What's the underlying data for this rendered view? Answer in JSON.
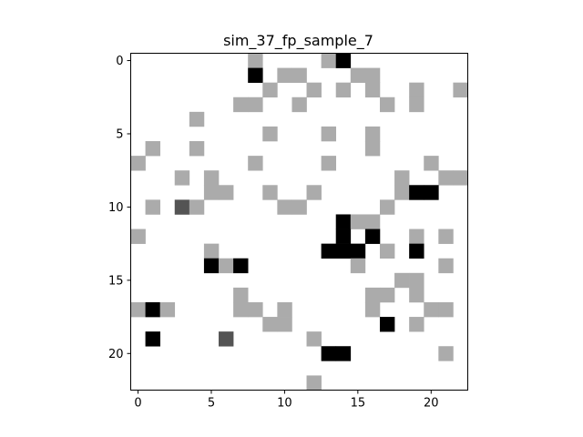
{
  "chart_data": {
    "type": "heatmap",
    "title": "sim_37_fp_sample_7",
    "xlabel": "",
    "ylabel": "",
    "rows": 23,
    "cols": 23,
    "xlim": [
      -0.5,
      22.5
    ],
    "ylim": [
      22.5,
      -0.5
    ],
    "x_ticks": [
      0,
      5,
      10,
      15,
      20
    ],
    "y_ticks": [
      0,
      5,
      10,
      15,
      20
    ],
    "grid": false,
    "colormap": "gray_r",
    "value_range": [
      0,
      1
    ],
    "cells": [
      {
        "r": 0,
        "c": 8,
        "v": 0.33
      },
      {
        "r": 0,
        "c": 13,
        "v": 0.33
      },
      {
        "r": 0,
        "c": 14,
        "v": 1
      },
      {
        "r": 1,
        "c": 8,
        "v": 1
      },
      {
        "r": 1,
        "c": 10,
        "v": 0.33
      },
      {
        "r": 1,
        "c": 11,
        "v": 0.33
      },
      {
        "r": 1,
        "c": 15,
        "v": 0.33
      },
      {
        "r": 1,
        "c": 16,
        "v": 0.33
      },
      {
        "r": 2,
        "c": 9,
        "v": 0.33
      },
      {
        "r": 2,
        "c": 12,
        "v": 0.33
      },
      {
        "r": 2,
        "c": 14,
        "v": 0.33
      },
      {
        "r": 2,
        "c": 16,
        "v": 0.33
      },
      {
        "r": 2,
        "c": 19,
        "v": 0.33
      },
      {
        "r": 2,
        "c": 22,
        "v": 0.33
      },
      {
        "r": 3,
        "c": 7,
        "v": 0.33
      },
      {
        "r": 3,
        "c": 8,
        "v": 0.33
      },
      {
        "r": 3,
        "c": 11,
        "v": 0.33
      },
      {
        "r": 3,
        "c": 17,
        "v": 0.33
      },
      {
        "r": 3,
        "c": 19,
        "v": 0.33
      },
      {
        "r": 4,
        "c": 4,
        "v": 0.33
      },
      {
        "r": 5,
        "c": 9,
        "v": 0.33
      },
      {
        "r": 5,
        "c": 13,
        "v": 0.33
      },
      {
        "r": 5,
        "c": 16,
        "v": 0.33
      },
      {
        "r": 6,
        "c": 1,
        "v": 0.33
      },
      {
        "r": 6,
        "c": 4,
        "v": 0.33
      },
      {
        "r": 6,
        "c": 16,
        "v": 0.33
      },
      {
        "r": 7,
        "c": 0,
        "v": 0.33
      },
      {
        "r": 7,
        "c": 8,
        "v": 0.33
      },
      {
        "r": 7,
        "c": 13,
        "v": 0.33
      },
      {
        "r": 7,
        "c": 20,
        "v": 0.33
      },
      {
        "r": 8,
        "c": 3,
        "v": 0.33
      },
      {
        "r": 8,
        "c": 5,
        "v": 0.33
      },
      {
        "r": 8,
        "c": 18,
        "v": 0.33
      },
      {
        "r": 8,
        "c": 21,
        "v": 0.33
      },
      {
        "r": 8,
        "c": 22,
        "v": 0.33
      },
      {
        "r": 9,
        "c": 5,
        "v": 0.33
      },
      {
        "r": 9,
        "c": 6,
        "v": 0.33
      },
      {
        "r": 9,
        "c": 9,
        "v": 0.33
      },
      {
        "r": 9,
        "c": 12,
        "v": 0.33
      },
      {
        "r": 9,
        "c": 18,
        "v": 0.33
      },
      {
        "r": 9,
        "c": 19,
        "v": 1
      },
      {
        "r": 9,
        "c": 20,
        "v": 1
      },
      {
        "r": 10,
        "c": 1,
        "v": 0.33
      },
      {
        "r": 10,
        "c": 3,
        "v": 0.67
      },
      {
        "r": 10,
        "c": 4,
        "v": 0.33
      },
      {
        "r": 10,
        "c": 10,
        "v": 0.33
      },
      {
        "r": 10,
        "c": 11,
        "v": 0.33
      },
      {
        "r": 10,
        "c": 17,
        "v": 0.33
      },
      {
        "r": 11,
        "c": 14,
        "v": 1
      },
      {
        "r": 11,
        "c": 15,
        "v": 0.33
      },
      {
        "r": 11,
        "c": 16,
        "v": 0.33
      },
      {
        "r": 12,
        "c": 0,
        "v": 0.33
      },
      {
        "r": 12,
        "c": 14,
        "v": 1
      },
      {
        "r": 12,
        "c": 16,
        "v": 1
      },
      {
        "r": 12,
        "c": 19,
        "v": 0.33
      },
      {
        "r": 12,
        "c": 21,
        "v": 0.33
      },
      {
        "r": 13,
        "c": 5,
        "v": 0.33
      },
      {
        "r": 13,
        "c": 13,
        "v": 1
      },
      {
        "r": 13,
        "c": 14,
        "v": 1
      },
      {
        "r": 13,
        "c": 15,
        "v": 1
      },
      {
        "r": 13,
        "c": 17,
        "v": 0.33
      },
      {
        "r": 13,
        "c": 19,
        "v": 1
      },
      {
        "r": 14,
        "c": 5,
        "v": 1
      },
      {
        "r": 14,
        "c": 6,
        "v": 0.33
      },
      {
        "r": 14,
        "c": 7,
        "v": 1
      },
      {
        "r": 14,
        "c": 15,
        "v": 0.33
      },
      {
        "r": 14,
        "c": 21,
        "v": 0.33
      },
      {
        "r": 15,
        "c": 18,
        "v": 0.33
      },
      {
        "r": 15,
        "c": 19,
        "v": 0.33
      },
      {
        "r": 16,
        "c": 7,
        "v": 0.33
      },
      {
        "r": 16,
        "c": 16,
        "v": 0.33
      },
      {
        "r": 16,
        "c": 17,
        "v": 0.33
      },
      {
        "r": 16,
        "c": 19,
        "v": 0.33
      },
      {
        "r": 17,
        "c": 0,
        "v": 0.33
      },
      {
        "r": 17,
        "c": 1,
        "v": 1
      },
      {
        "r": 17,
        "c": 2,
        "v": 0.33
      },
      {
        "r": 17,
        "c": 7,
        "v": 0.33
      },
      {
        "r": 17,
        "c": 8,
        "v": 0.33
      },
      {
        "r": 17,
        "c": 10,
        "v": 0.33
      },
      {
        "r": 17,
        "c": 16,
        "v": 0.33
      },
      {
        "r": 17,
        "c": 20,
        "v": 0.33
      },
      {
        "r": 17,
        "c": 21,
        "v": 0.33
      },
      {
        "r": 18,
        "c": 9,
        "v": 0.33
      },
      {
        "r": 18,
        "c": 10,
        "v": 0.33
      },
      {
        "r": 18,
        "c": 17,
        "v": 1
      },
      {
        "r": 18,
        "c": 19,
        "v": 0.33
      },
      {
        "r": 19,
        "c": 1,
        "v": 1
      },
      {
        "r": 19,
        "c": 6,
        "v": 0.67
      },
      {
        "r": 19,
        "c": 12,
        "v": 0.33
      },
      {
        "r": 20,
        "c": 13,
        "v": 1
      },
      {
        "r": 20,
        "c": 14,
        "v": 1
      },
      {
        "r": 20,
        "c": 21,
        "v": 0.33
      },
      {
        "r": 22,
        "c": 12,
        "v": 0.33
      }
    ]
  }
}
